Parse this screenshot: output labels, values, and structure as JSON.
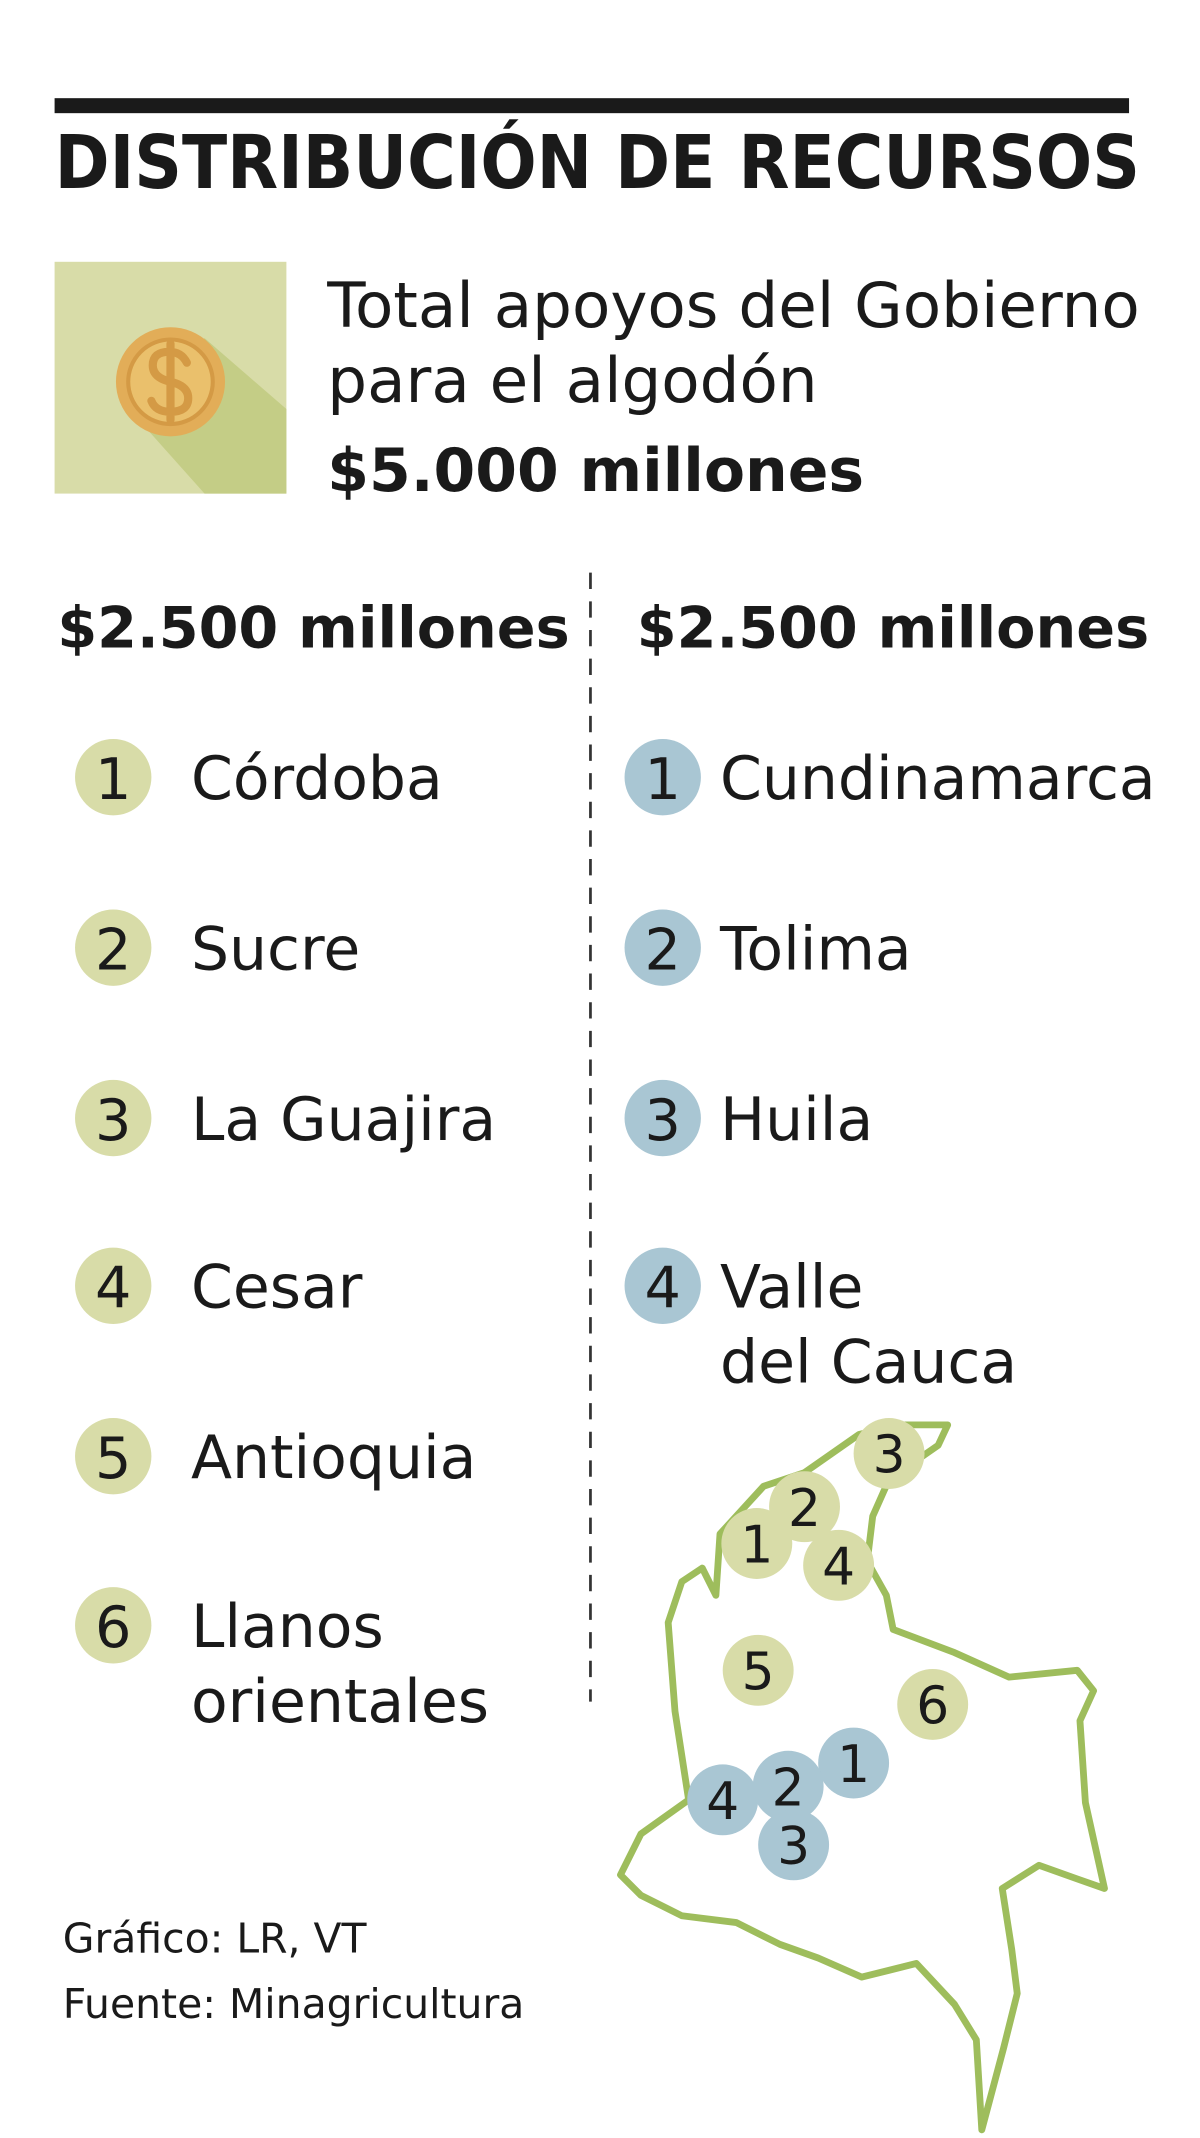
{
  "header": {
    "title": "DISTRIBUCIÓN DE RECURSOS"
  },
  "summary": {
    "line1": "Total apoyos del Gobierno",
    "line2": "para el algodón",
    "amount": "$5.000 millones"
  },
  "left": {
    "amount": "$2.500 millones",
    "color": "#d8dca8",
    "items": [
      {
        "number": 1,
        "label": [
          "Córdoba"
        ]
      },
      {
        "number": 2,
        "label": [
          "Sucre"
        ]
      },
      {
        "number": 3,
        "label": [
          "La Guajira"
        ]
      },
      {
        "number": 4,
        "label": [
          "Cesar"
        ]
      },
      {
        "number": 5,
        "label": [
          "Antioquia"
        ]
      },
      {
        "number": 6,
        "label": [
          "Llanos",
          "orientales"
        ]
      }
    ]
  },
  "right": {
    "amount": "$2.500 millones",
    "color": "#a9c6d3",
    "items": [
      {
        "number": 1,
        "label": [
          "Cundinamarca"
        ]
      },
      {
        "number": 2,
        "label": [
          "Tolima"
        ]
      },
      {
        "number": 3,
        "label": [
          "Huila"
        ]
      },
      {
        "number": 4,
        "label": [
          "Valle",
          "del Cauca"
        ]
      }
    ]
  },
  "map": {
    "markers": [
      {
        "number": 3,
        "color": "#d8dca8"
      },
      {
        "number": 2,
        "color": "#d8dca8"
      },
      {
        "number": 1,
        "color": "#d8dca8"
      },
      {
        "number": 4,
        "color": "#d8dca8"
      },
      {
        "number": 5,
        "color": "#d8dca8"
      },
      {
        "number": 6,
        "color": "#d8dca8"
      },
      {
        "number": 1,
        "color": "#a9c6d3"
      },
      {
        "number": 4,
        "color": "#a9c6d3"
      },
      {
        "number": 2,
        "color": "#a9c6d3"
      },
      {
        "number": 3,
        "color": "#a9c6d3"
      }
    ]
  },
  "credits": {
    "graphic": "Gráfico: LR, VT",
    "source": "Fuente: Minagricultura"
  }
}
